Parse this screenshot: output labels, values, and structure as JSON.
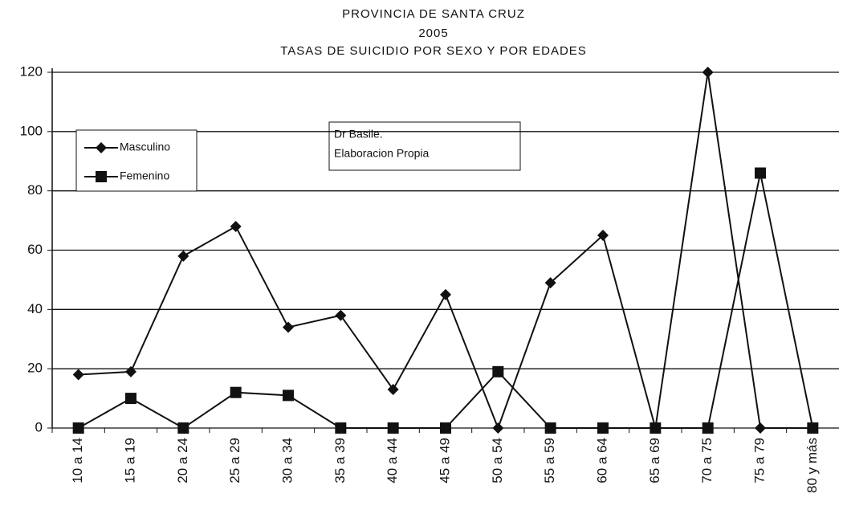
{
  "chart_data": {
    "type": "line",
    "title": [
      "PROVINCIA DE SANTA CRUZ",
      "2005",
      "TASAS DE SUICIDIO POR SEXO Y POR EDADES"
    ],
    "annotations": [
      "Dr Basile.",
      "Elaboracion Propia"
    ],
    "categories": [
      "10 a 14",
      "15 a 19",
      "20 a 24",
      "25 a 29",
      "30 a 34",
      "35 a 39",
      "40 a 44",
      "45 a 49",
      "50 a 54",
      "55 a 59",
      "60 a 64",
      "65 a 69",
      "70 a 75",
      "75 a 79",
      "80 y más"
    ],
    "series": [
      {
        "name": "Masculino",
        "color": "#111111",
        "marker": "diamond",
        "values": [
          18,
          19,
          58,
          68,
          34,
          38,
          13,
          45,
          0,
          49,
          65,
          0,
          120,
          0,
          0
        ]
      },
      {
        "name": "Femenino",
        "color": "#111111",
        "marker": "square",
        "values": [
          0,
          10,
          0,
          12,
          11,
          0,
          0,
          0,
          19,
          0,
          0,
          0,
          0,
          86,
          0
        ]
      }
    ],
    "ylim": [
      0,
      120
    ],
    "yticks": [
      0,
      20,
      40,
      60,
      80,
      100,
      120
    ],
    "grid": true,
    "legend": "upper left"
  }
}
